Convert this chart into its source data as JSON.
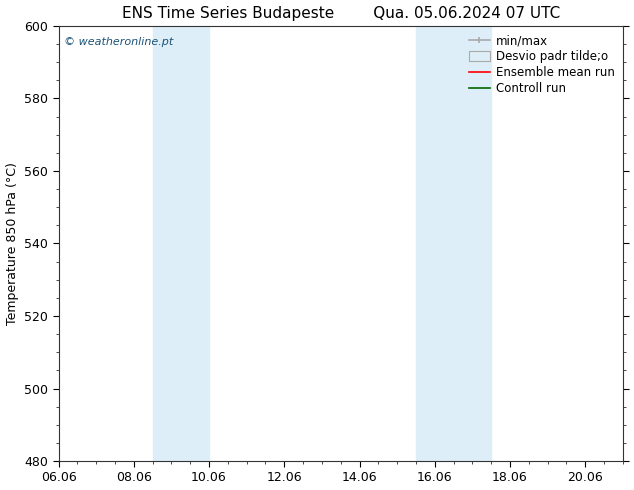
{
  "title": "ENS Time Series Budapeste        Qua. 05.06.2024 07 UTC",
  "ylabel": "Temperature 850 hPa (°C)",
  "xlim": [
    0,
    15.0
  ],
  "ylim": [
    480,
    600
  ],
  "yticks": [
    480,
    500,
    520,
    540,
    560,
    580,
    600
  ],
  "xtick_labels": [
    "06.06",
    "08.06",
    "10.06",
    "12.06",
    "14.06",
    "16.06",
    "18.06",
    "20.06"
  ],
  "xtick_positions": [
    0,
    2,
    4,
    6,
    8,
    10,
    12,
    14
  ],
  "shaded_bands": [
    {
      "xmin": 2.5,
      "xmax": 4.0
    },
    {
      "xmin": 9.5,
      "xmax": 11.5
    }
  ],
  "shaded_color": "#ddeef8",
  "watermark_text": "© weatheronline.pt",
  "watermark_color": "#1a5276",
  "bg_color": "white",
  "spine_color": "#333333",
  "title_fontsize": 11,
  "ylabel_fontsize": 9,
  "tick_fontsize": 9,
  "legend_fontsize": 8.5
}
